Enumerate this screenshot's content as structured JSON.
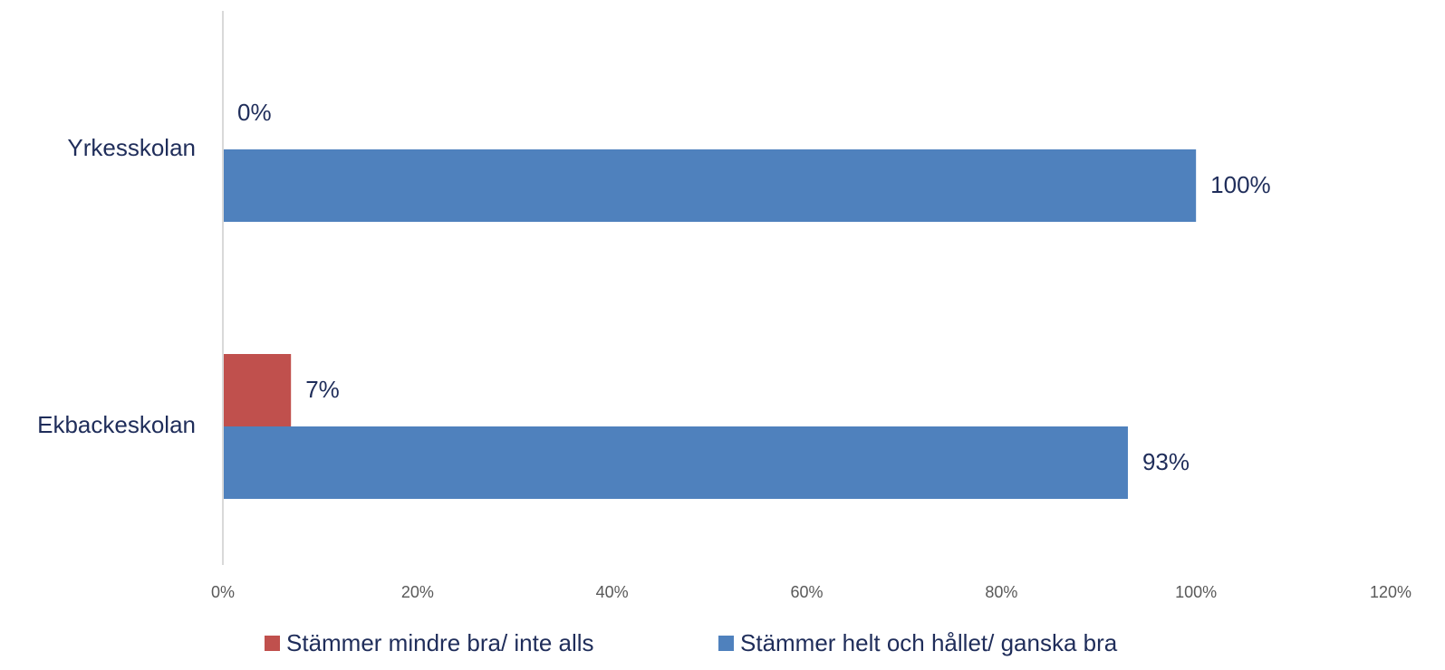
{
  "chart_data": {
    "type": "bar",
    "orientation": "horizontal",
    "categories": [
      "Ekbackeskolan",
      "Yrkesskolan"
    ],
    "series": [
      {
        "name": "Stämmer mindre bra/ inte alls",
        "color": "#c0504d",
        "values": [
          7,
          0
        ],
        "value_labels": [
          "7%",
          "0%"
        ]
      },
      {
        "name": "Stämmer helt och hållet/ ganska bra",
        "color": "#4f81bd",
        "values": [
          93,
          100
        ],
        "value_labels": [
          "93%",
          "100%"
        ]
      }
    ],
    "xlim": [
      0,
      120
    ],
    "xticks": [
      {
        "value": 0,
        "label": "0%"
      },
      {
        "value": 20,
        "label": "20%"
      },
      {
        "value": 40,
        "label": "40%"
      },
      {
        "value": 60,
        "label": "60%"
      },
      {
        "value": 80,
        "label": "80%"
      },
      {
        "value": 100,
        "label": "100%"
      },
      {
        "value": 120,
        "label": "120%"
      }
    ],
    "legend": "bottom"
  }
}
